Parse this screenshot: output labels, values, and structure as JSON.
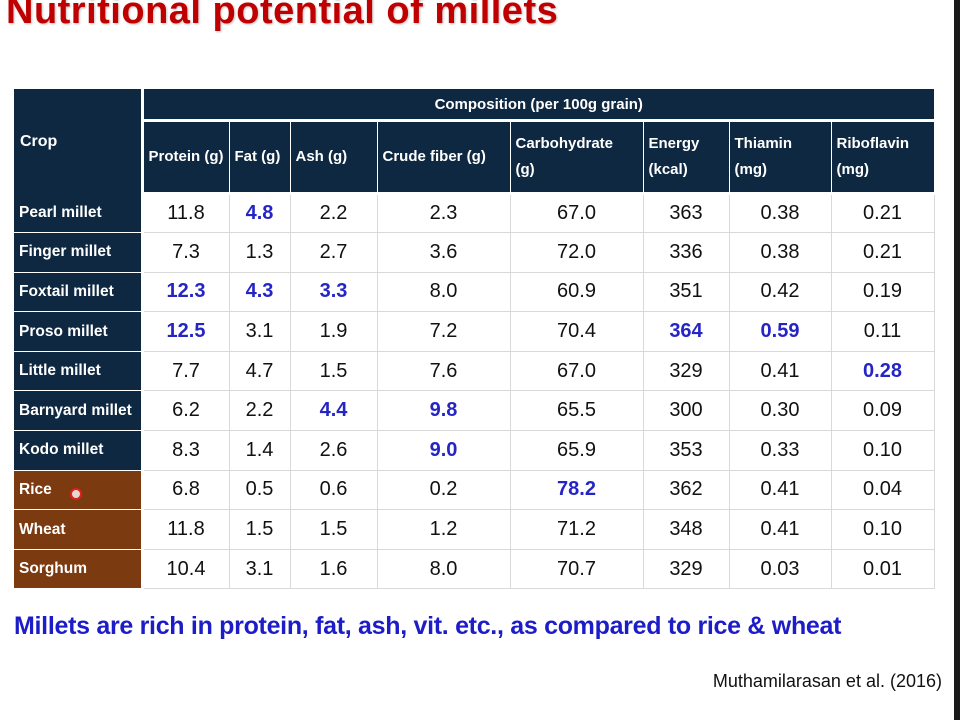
{
  "title": "Nutritional potential of millets",
  "table": {
    "crop_header": "Crop",
    "group_header": "Composition (per 100g grain)",
    "columns": [
      [
        "Protein (g)"
      ],
      [
        "Fat (g)"
      ],
      [
        "Ash (g)"
      ],
      [
        "Crude fiber (g)"
      ],
      [
        "Carbohydrate",
        "(g)"
      ],
      [
        "Energy",
        "(kcal)"
      ],
      [
        "Thiamin",
        "(mg)"
      ],
      [
        "Riboflavin",
        "(mg)"
      ]
    ],
    "rows": [
      {
        "crop": "Pearl millet",
        "kind": "millet",
        "values": [
          "11.8",
          "4.8",
          "2.2",
          "2.3",
          "67.0",
          "363",
          "0.38",
          "0.21"
        ],
        "highlight": [
          1
        ]
      },
      {
        "crop": "Finger millet",
        "kind": "millet",
        "values": [
          "7.3",
          "1.3",
          "2.7",
          "3.6",
          "72.0",
          "336",
          "0.38",
          "0.21"
        ],
        "highlight": []
      },
      {
        "crop": "Foxtail millet",
        "kind": "millet",
        "values": [
          "12.3",
          "4.3",
          "3.3",
          "8.0",
          "60.9",
          "351",
          "0.42",
          "0.19"
        ],
        "highlight": [
          0,
          1,
          2
        ]
      },
      {
        "crop": "Proso millet",
        "kind": "millet",
        "values": [
          "12.5",
          "3.1",
          "1.9",
          "7.2",
          "70.4",
          "364",
          "0.59",
          "0.11"
        ],
        "highlight": [
          0,
          5,
          6
        ]
      },
      {
        "crop": "Little millet",
        "kind": "millet",
        "values": [
          "7.7",
          "4.7",
          "1.5",
          "7.6",
          "67.0",
          "329",
          "0.41",
          "0.28"
        ],
        "highlight": [
          7
        ]
      },
      {
        "crop": "Barnyard millet",
        "kind": "millet",
        "values": [
          "6.2",
          "2.2",
          "4.4",
          "9.8",
          "65.5",
          "300",
          "0.30",
          "0.09"
        ],
        "highlight": [
          2,
          3
        ]
      },
      {
        "crop": "Kodo millet",
        "kind": "millet",
        "values": [
          "8.3",
          "1.4",
          "2.6",
          "9.0",
          "65.9",
          "353",
          "0.33",
          "0.10"
        ],
        "highlight": [
          3
        ]
      },
      {
        "crop": "Rice",
        "kind": "grain",
        "values": [
          "6.8",
          "0.5",
          "0.6",
          "0.2",
          "78.2",
          "362",
          "0.41",
          "0.04"
        ],
        "highlight": [
          4
        ]
      },
      {
        "crop": "Wheat",
        "kind": "grain",
        "values": [
          "11.8",
          "1.5",
          "1.5",
          "1.2",
          "71.2",
          "348",
          "0.41",
          "0.10"
        ],
        "highlight": []
      },
      {
        "crop": "Sorghum",
        "kind": "grain",
        "values": [
          "10.4",
          "3.1",
          "1.6",
          "8.0",
          "70.7",
          "329",
          "0.03",
          "0.01"
        ],
        "highlight": []
      }
    ]
  },
  "summary": "Millets are rich in protein, fat, ash, vit. etc., as compared to rice & wheat",
  "citation": "Muthamilarasan et al. (2016)",
  "colors": {
    "title": "#c00000",
    "header_bg": "#0e2841",
    "grain_bg": "#7b3a0f",
    "highlight_text": "#2525c6"
  }
}
